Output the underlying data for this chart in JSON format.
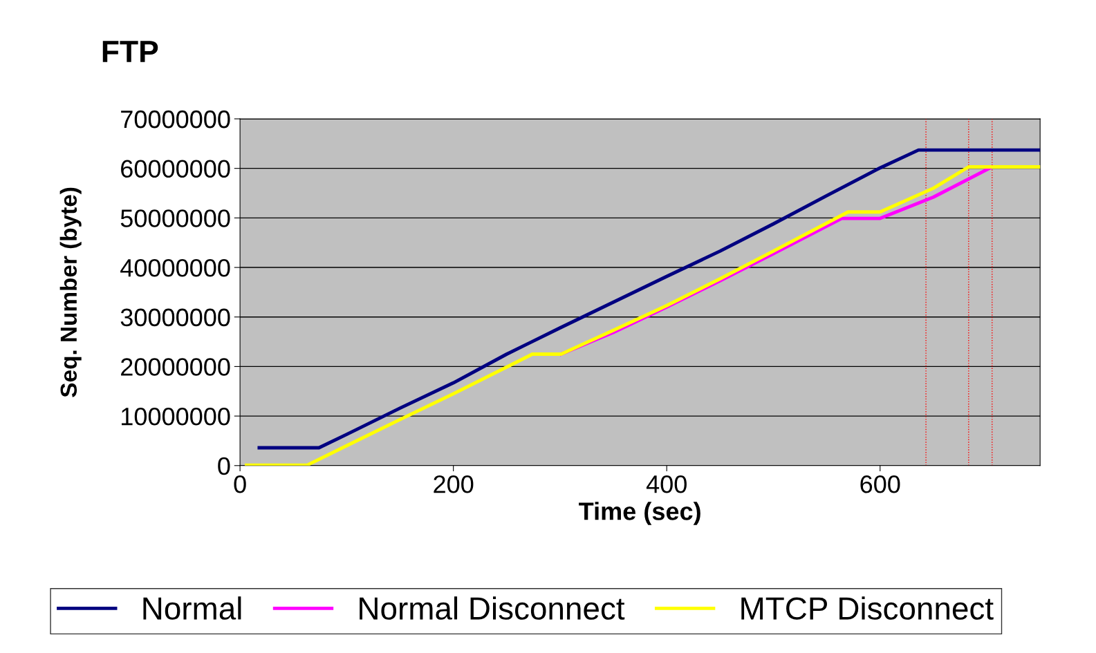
{
  "chart_data": {
    "type": "line",
    "title": "FTP",
    "xlabel": "Time (sec)",
    "ylabel": "Seq. Number (byte)",
    "series": [
      {
        "name": "Normal",
        "color": "#000080",
        "x": [
          18,
          74,
          100,
          150,
          200,
          250,
          300,
          350,
          400,
          450,
          500,
          550,
          600,
          636,
          750
        ],
        "values": [
          3600000,
          3600000,
          6300000,
          11600000,
          16700000,
          22500000,
          27800000,
          33000000,
          38200000,
          43300000,
          48800000,
          54500000,
          60100000,
          63700000,
          63700000
        ]
      },
      {
        "name": "Normal Disconnect",
        "color": "#ff00ff",
        "x": [
          301,
          350,
          400,
          450,
          500,
          564,
          600,
          650,
          705
        ],
        "values": [
          22500000,
          26900000,
          32000000,
          37300000,
          42800000,
          49900000,
          49900000,
          54200000,
          60300000
        ]
      },
      {
        "name": "MTCP Disconnect",
        "color": "#ffff00",
        "x": [
          6,
          63,
          150,
          200,
          274,
          301,
          350,
          400,
          450,
          500,
          570,
          600,
          650,
          683,
          750
        ],
        "values": [
          100000,
          100000,
          9300000,
          14500000,
          22500000,
          22500000,
          27300000,
          32300000,
          37700000,
          43300000,
          51200000,
          51200000,
          56000000,
          60300000,
          60300000
        ]
      }
    ],
    "xlim": [
      0,
      750
    ],
    "xticks": [
      0,
      200,
      400,
      600
    ],
    "ylim": [
      0,
      70000000
    ],
    "yticks": [
      0,
      10000000,
      20000000,
      30000000,
      40000000,
      50000000,
      60000000,
      70000000
    ],
    "ref_lines": [
      {
        "axis": "x",
        "value": 643,
        "color": "#ff0000",
        "line_style": "dotted"
      },
      {
        "axis": "x",
        "value": 683,
        "color": "#ff0000",
        "line_style": "dotted"
      },
      {
        "axis": "x",
        "value": 705,
        "color": "#ff0000",
        "line_style": "dotted"
      }
    ],
    "grid": "y",
    "legend": "bottom",
    "marker": "none",
    "line_style": "solid"
  }
}
